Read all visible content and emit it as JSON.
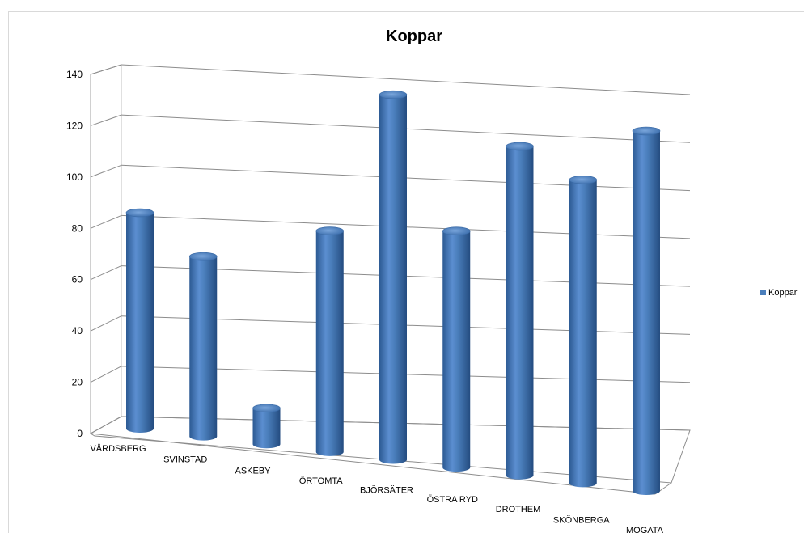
{
  "chart_data": {
    "type": "bar",
    "style": "3d-cylinder",
    "title": "Koppar",
    "categories": [
      "VÅRDSBERG",
      "SVINSTAD",
      "ASKEBY",
      "ÖRTOMTA",
      "BJÖRSÄTER",
      "ÖSTRA RYD",
      "DROTHEM",
      "SKÖNBERGA",
      "MOGATA"
    ],
    "series": [
      {
        "name": "Koppar",
        "color": "#4a7ebb",
        "values": [
          84,
          70,
          14,
          86,
          142,
          92,
          128,
          118,
          140
        ]
      }
    ],
    "ylim": [
      0,
      140
    ],
    "yticks": [
      "0",
      "20",
      "40",
      "60",
      "80",
      "100",
      "120",
      "140"
    ],
    "grid": true,
    "legend": {
      "position": "right",
      "label": "Koppar"
    }
  }
}
